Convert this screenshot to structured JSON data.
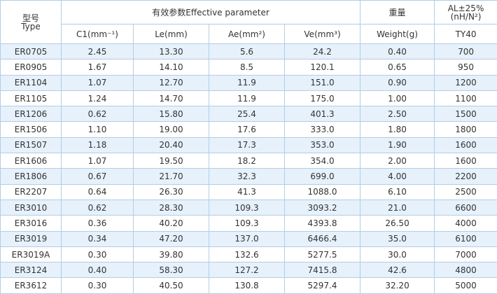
{
  "table": {
    "header": {
      "model": [
        "型号",
        "Type"
      ],
      "group": "有效参数Effective parameter",
      "weight": "重量",
      "al": [
        "AL±25%",
        "(nH/N²)"
      ]
    },
    "columns": [
      "C1(mm⁻¹)",
      "Le(mm)",
      "Ae(mm²)",
      "Ve(mm³)",
      "Weight(g)",
      "TY40"
    ],
    "rows": [
      [
        "ER0705",
        "2.45",
        "13.30",
        "5.6",
        "24.2",
        "0.40",
        "700"
      ],
      [
        "ER0905",
        "1.67",
        "14.10",
        "8.5",
        "120.1",
        "0.65",
        "950"
      ],
      [
        "ER1104",
        "1.07",
        "12.70",
        "11.9",
        "151.0",
        "0.90",
        "1200"
      ],
      [
        "ER1105",
        "1.24",
        "14.70",
        "11.9",
        "175.0",
        "1.00",
        "1100"
      ],
      [
        "ER1206",
        "0.62",
        "15.80",
        "25.4",
        "401.3",
        "2.50",
        "1500"
      ],
      [
        "ER1506",
        "1.10",
        "19.00",
        "17.6",
        "333.0",
        "1.80",
        "1800"
      ],
      [
        "ER1507",
        "1.18",
        "20.40",
        "17.3",
        "353.0",
        "1.90",
        "1600"
      ],
      [
        "ER1606",
        "1.07",
        "19.50",
        "18.2",
        "354.0",
        "2.00",
        "1600"
      ],
      [
        "ER1806",
        "0.67",
        "21.70",
        "32.3",
        "699.0",
        "4.00",
        "2200"
      ],
      [
        "ER2207",
        "0.64",
        "26.30",
        "41.3",
        "1088.0",
        "6.10",
        "2500"
      ],
      [
        "ER3010",
        "0.62",
        "28.30",
        "109.3",
        "3093.2",
        "21.0",
        "6600"
      ],
      [
        "ER3016",
        "0.36",
        "40.20",
        "109.3",
        "4393.8",
        "26.50",
        "4000"
      ],
      [
        "ER3019",
        "0.34",
        "47.20",
        "137.0",
        "6466.4",
        "35.0",
        "6100"
      ],
      [
        "ER3019A",
        "0.30",
        "39.80",
        "132.6",
        "5277.5",
        "30.0",
        "7000"
      ],
      [
        "ER3124",
        "0.40",
        "58.30",
        "127.2",
        "7415.8",
        "42.6",
        "4800"
      ],
      [
        "ER3612",
        "0.30",
        "40.50",
        "130.8",
        "5297.4",
        "32.20",
        "5000"
      ]
    ]
  }
}
